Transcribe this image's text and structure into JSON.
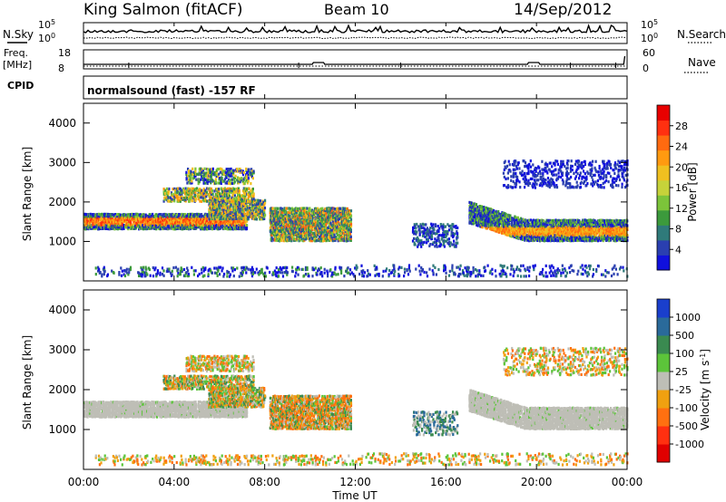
{
  "header": {
    "station": "King Salmon (fitACF)",
    "beam": "Beam 10",
    "date": "14/Sep/2012"
  },
  "strip_panels": {
    "nsky_label": "N.Sky",
    "nsearch_label": "N.Search",
    "freq_label_1": "Freq.",
    "freq_label_2": "[MHz]",
    "nave_label": "Nave",
    "cpid_label": "CPID",
    "noise_ticks_left": [
      "10^5",
      "10^0"
    ],
    "noise_ticks_right": [
      "10^5",
      "10^0"
    ],
    "freq_ticks": [
      "18",
      "8"
    ],
    "nave_ticks": [
      "60",
      "0"
    ],
    "cpid_text": "normalsound (fast) -157 RF"
  },
  "chart_data": [
    {
      "type": "heatmap",
      "name": "power",
      "ylabel": "Slant Range [km]",
      "yticks": [
        "1000",
        "2000",
        "3000",
        "4000"
      ],
      "ylim": [
        0,
        4500
      ],
      "xlim": [
        0,
        24
      ],
      "colorbar_label": "Power [dB]",
      "colorbar_ticks": [
        "4",
        "8",
        "12",
        "16",
        "20",
        "24",
        "28"
      ],
      "colorbar_colors": [
        "#1010dd",
        "#2a3fb0",
        "#2f7a7a",
        "#3c9a3c",
        "#7cc43a",
        "#c6d23a",
        "#f0c020",
        "#ff9a10",
        "#ff6a10",
        "#ff3010",
        "#e80000"
      ]
    },
    {
      "type": "heatmap",
      "name": "velocity",
      "ylabel": "Slant Range [km]",
      "yticks": [
        "1000",
        "2000",
        "3000",
        "4000"
      ],
      "ylim": [
        0,
        4500
      ],
      "xlim": [
        0,
        24
      ],
      "colorbar_label": "Velocity [m s^-1]",
      "colorbar_ticks": [
        "1000",
        "500",
        "100",
        "25",
        "-25",
        "-100",
        "-500",
        "-1000"
      ],
      "colorbar_colors": [
        "#1a3fcc",
        "#2a6a9a",
        "#3a8a50",
        "#5cc43a",
        "#bebeb6",
        "#f0a010",
        "#ff7010",
        "#ff3010",
        "#e00000"
      ]
    }
  ],
  "x_axis": {
    "ticks": [
      "00:00",
      "04:00",
      "08:00",
      "12:00",
      "16:00",
      "20:00",
      "00:00"
    ],
    "label": "Time UT"
  }
}
